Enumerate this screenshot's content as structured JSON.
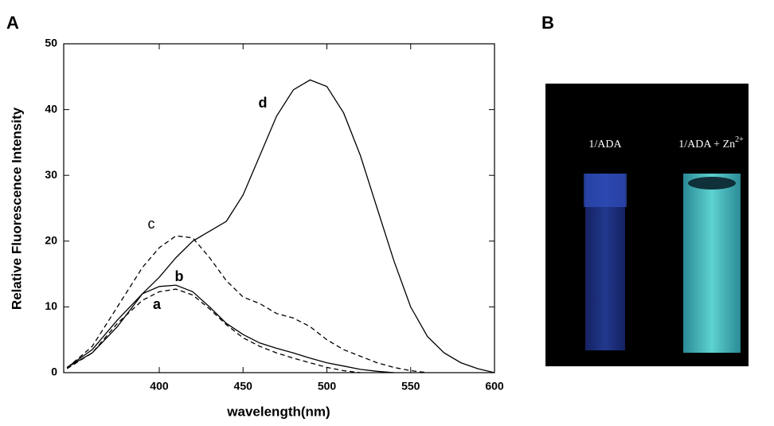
{
  "chart_data": {
    "type": "line",
    "panel_label": "A",
    "x_label": "wavelength(nm)",
    "y_label": "Relative Fluorescence Intensity",
    "x": [
      345,
      360,
      375,
      390,
      400,
      410,
      420,
      430,
      440,
      450,
      460,
      470,
      480,
      490,
      500,
      510,
      520,
      530,
      540,
      550,
      560,
      570,
      580,
      590,
      600
    ],
    "series": [
      {
        "name": "a",
        "color": "#000000",
        "dashed": true,
        "values": [
          0.6,
          3,
          7.5,
          11,
          12.3,
          12.7,
          11.8,
          9.7,
          7.3,
          5.3,
          4,
          3,
          2.2,
          1.5,
          0.8,
          0.3,
          0,
          null,
          null,
          null,
          null,
          null,
          null,
          null,
          null
        ]
      },
      {
        "name": "b",
        "color": "#000000",
        "dashed": false,
        "values": [
          0.8,
          3.5,
          8,
          12,
          13.1,
          13.3,
          12.3,
          10,
          7.5,
          5.8,
          4.5,
          3.7,
          3,
          2.2,
          1.5,
          1,
          0.5,
          0.2,
          0,
          null,
          null,
          null,
          null,
          null,
          null
        ]
      },
      {
        "name": "c",
        "color": "#000000",
        "dashed": true,
        "values": [
          0.7,
          4,
          10,
          16,
          19,
          20.8,
          20.5,
          17.5,
          14,
          11.5,
          10.5,
          9,
          8.3,
          7,
          5,
          3.5,
          2.5,
          1.5,
          0.8,
          0.3,
          0,
          null,
          null,
          null,
          null
        ]
      },
      {
        "name": "d",
        "color": "#000000",
        "dashed": false,
        "values": [
          0.8,
          3,
          7,
          12,
          14.5,
          17.5,
          20,
          21.5,
          23,
          27,
          33,
          39,
          43,
          44.5,
          43.5,
          39.5,
          33,
          25,
          17,
          10,
          5.5,
          3,
          1.5,
          0.6,
          0
        ]
      }
    ],
    "xlim": [
      343,
      600
    ],
    "xticks": [
      400,
      450,
      500,
      550,
      600
    ],
    "ylim": [
      0,
      50
    ],
    "yticks": [
      0,
      10,
      20,
      30,
      40,
      50
    ]
  },
  "photo": {
    "panel_label": "B",
    "left_label": "1/ADA",
    "right_label": "1/ADA + Zn",
    "right_label_sup": "2+"
  }
}
